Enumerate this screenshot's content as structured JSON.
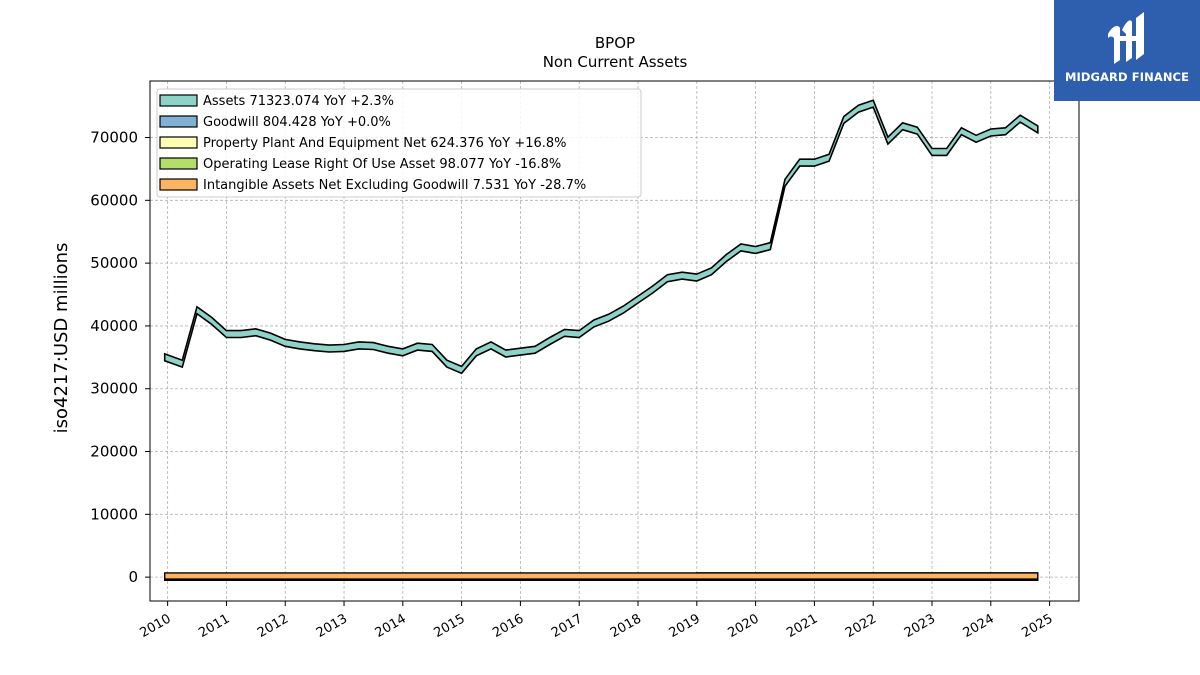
{
  "chart_data": {
    "type": "area",
    "title": "BPOP",
    "subtitle": "Non Current  Assets",
    "ylabel": "iso4217:USD  millions",
    "xlabel": "",
    "ylim": [
      -3800,
      79000
    ],
    "xlim": [
      2009.7,
      2025.5
    ],
    "yticks": [
      0,
      10000,
      20000,
      30000,
      40000,
      50000,
      60000,
      70000
    ],
    "ytick_labels": [
      "0",
      "10000",
      "20000",
      "30000",
      "40000",
      "50000",
      "60000",
      "70000"
    ],
    "xticks": [
      2010,
      2011,
      2012,
      2013,
      2014,
      2015,
      2016,
      2017,
      2018,
      2019,
      2020,
      2021,
      2022,
      2023,
      2024,
      2025
    ],
    "xtick_labels": [
      "2010",
      "2011",
      "2012",
      "2013",
      "2014",
      "2015",
      "2016",
      "2017",
      "2018",
      "2019",
      "2020",
      "2021",
      "2022",
      "2023",
      "2024",
      "2025"
    ],
    "grid": true,
    "legend_position": "top-left",
    "series": [
      {
        "name": "Assets  71323.074 YoY +2.3%",
        "color": "#8dd3c7",
        "x": [
          2009.95,
          2010.25,
          2010.5,
          2010.75,
          2011.0,
          2011.25,
          2011.5,
          2011.75,
          2012.0,
          2012.25,
          2012.5,
          2012.75,
          2013.0,
          2013.25,
          2013.5,
          2013.75,
          2014.0,
          2014.25,
          2014.5,
          2014.75,
          2015.0,
          2015.25,
          2015.5,
          2015.75,
          2016.0,
          2016.25,
          2016.5,
          2016.75,
          2017.0,
          2017.25,
          2017.5,
          2017.75,
          2018.0,
          2018.25,
          2018.5,
          2018.75,
          2019.0,
          2019.25,
          2019.5,
          2019.75,
          2020.0,
          2020.25,
          2020.5,
          2020.75,
          2021.0,
          2021.25,
          2021.5,
          2021.75,
          2022.0,
          2022.25,
          2022.5,
          2022.75,
          2023.0,
          2023.25,
          2023.5,
          2023.75,
          2024.0,
          2024.25,
          2024.5,
          2024.8
        ],
        "values": [
          35000,
          34000,
          42500,
          40800,
          38700,
          38700,
          39000,
          38300,
          37300,
          36900,
          36600,
          36400,
          36500,
          36900,
          36800,
          36200,
          35800,
          36700,
          36500,
          34000,
          33000,
          35800,
          36900,
          35600,
          35900,
          36200,
          37600,
          38900,
          38700,
          40400,
          41300,
          42600,
          44200,
          45800,
          47600,
          48000,
          47700,
          48700,
          50800,
          52500,
          52100,
          52700,
          62800,
          66000,
          66000,
          66800,
          72800,
          74600,
          75400,
          69500,
          71800,
          71100,
          67700,
          67700,
          71000,
          69800,
          70800,
          71000,
          73000,
          71300
        ]
      },
      {
        "name": "Goodwill  804.428 YoY +0.0%",
        "color": "#80b1d3",
        "x": [
          2009.95,
          2024.8
        ],
        "values": [
          650,
          804
        ]
      },
      {
        "name": "Property Plant And Equipment Net  624.376 YoY +16.8%",
        "color": "#ffffb3",
        "x": [
          2009.95,
          2024.8
        ],
        "values": [
          540,
          624
        ]
      },
      {
        "name": "Operating Lease Right Of Use Asset  98.077 YoY -16.8%",
        "color": "#b3de69",
        "x": [
          2019.0,
          2024.8
        ],
        "values": [
          120,
          98
        ]
      },
      {
        "name": "Intangible Assets Net Excluding Goodwill  7.531 YoY -28.7%",
        "color": "#fdb462",
        "x": [
          2009.95,
          2024.8
        ],
        "values": [
          60,
          8
        ]
      }
    ]
  },
  "watermark": {
    "brand": "MIDGARD FINANCE",
    "color": "#2e5fae"
  }
}
